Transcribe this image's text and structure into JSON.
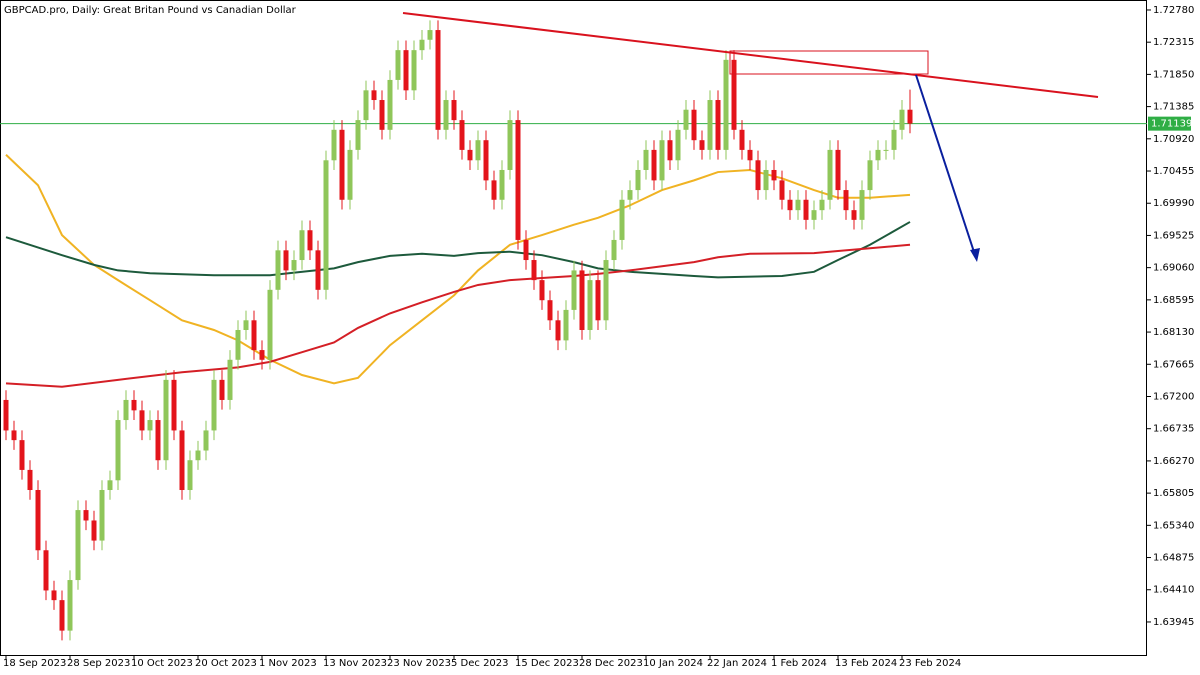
{
  "chart_data": {
    "type": "candlestick",
    "title": "GBPCAD.pro, Daily:  Great Britan Pound vs Canadian Dollar",
    "categories": [
      "18 Sep 2023",
      null,
      null,
      null,
      null,
      null,
      null,
      null,
      "28 Sep 2023",
      null,
      null,
      null,
      null,
      null,
      null,
      null,
      "10 Oct 2023",
      null,
      null,
      null,
      null,
      null,
      null,
      null,
      "20 Oct 2023",
      null,
      null,
      null,
      null,
      null,
      null,
      null,
      "1 Nov 2023",
      null,
      null,
      null,
      null,
      null,
      null,
      null,
      "13 Nov 2023",
      null,
      null,
      null,
      null,
      null,
      null,
      null,
      "23 Nov 2023",
      null,
      null,
      null,
      null,
      null,
      null,
      null,
      "5 Dec 2023",
      null,
      null,
      null,
      null,
      null,
      null,
      null,
      "15 Dec 2023",
      null,
      null,
      null,
      null,
      null,
      null,
      null,
      "28 Dec 2023",
      null,
      null,
      null,
      null,
      null,
      null,
      null,
      "10 Jan 2024",
      null,
      null,
      null,
      null,
      null,
      null,
      null,
      "22 Jan 2024",
      null,
      null,
      null,
      null,
      null,
      null,
      null,
      "1 Feb 2024",
      null,
      null,
      null,
      null,
      null,
      null,
      null,
      "13 Feb 2024",
      null,
      null,
      null,
      null,
      null,
      null,
      null,
      "23 Feb 2024",
      null
    ],
    "open": [
      1.6715,
      1.6671,
      1.6657,
      1.6614,
      1.6585,
      1.6498,
      1.644,
      1.6426,
      1.6382,
      1.6455,
      1.6556,
      1.6541,
      1.6512,
      1.6585,
      1.6599,
      1.6686,
      1.6715,
      1.67,
      1.6671,
      1.6686,
      1.6628,
      1.6744,
      1.6671,
      1.6585,
      1.6628,
      1.6642,
      1.6671,
      1.6744,
      1.6715,
      1.6773,
      1.6816,
      1.683,
      1.6787,
      1.6773,
      1.6874,
      1.6931,
      1.6902,
      1.6917,
      1.696,
      1.6931,
      1.6874,
      1.7061,
      1.7105,
      1.7004,
      1.7076,
      1.7119,
      1.7162,
      1.7148,
      1.7105,
      1.7177,
      1.722,
      1.7162,
      1.722,
      1.7235,
      1.7249,
      1.7105,
      1.7148,
      1.7119,
      1.7076,
      1.7061,
      1.709,
      1.7032,
      1.7004,
      1.7047,
      1.7119,
      1.6946,
      1.6917,
      1.6888,
      1.6859,
      1.683,
      1.6801,
      1.6845,
      1.6902,
      1.6816,
      1.6888,
      1.683,
      1.6917,
      1.6946,
      1.7004,
      1.7018,
      1.7047,
      1.7076,
      1.7032,
      1.709,
      1.7061,
      1.7105,
      1.7134,
      1.709,
      1.7076,
      1.7148,
      1.7076,
      1.7206,
      1.7105,
      1.7076,
      1.7061,
      1.7018,
      1.7047,
      1.7032,
      1.7004,
      1.6989,
      1.7004,
      1.6975,
      1.6989,
      1.7004,
      1.7076,
      1.7018,
      1.6989,
      1.6975,
      1.7018,
      1.7061,
      1.7076,
      1.7076,
      1.7105,
      1.7134
    ],
    "high": [
      1.6729,
      1.6685,
      1.6671,
      1.6628,
      1.6599,
      1.6512,
      1.6454,
      1.644,
      1.6469,
      1.657,
      1.657,
      1.6555,
      1.6599,
      1.6613,
      1.67,
      1.6729,
      1.6729,
      1.6714,
      1.67,
      1.67,
      1.6758,
      1.6758,
      1.6685,
      1.6642,
      1.6656,
      1.6685,
      1.6758,
      1.6758,
      1.6787,
      1.683,
      1.6844,
      1.6844,
      1.6801,
      1.6888,
      1.6945,
      1.6945,
      1.6931,
      1.6974,
      1.6974,
      1.6945,
      1.7075,
      1.7119,
      1.7119,
      1.709,
      1.7133,
      1.7176,
      1.7176,
      1.7162,
      1.7191,
      1.7234,
      1.7234,
      1.7234,
      1.7249,
      1.7263,
      1.7263,
      1.7162,
      1.7162,
      1.7133,
      1.709,
      1.7104,
      1.7104,
      1.7046,
      1.7061,
      1.7133,
      1.7133,
      1.696,
      1.6931,
      1.6902,
      1.6873,
      1.6844,
      1.6859,
      1.6916,
      1.6916,
      1.6902,
      1.6902,
      1.6931,
      1.696,
      1.7018,
      1.7032,
      1.7061,
      1.709,
      1.709,
      1.7104,
      1.7104,
      1.7119,
      1.7148,
      1.7148,
      1.7104,
      1.7162,
      1.7162,
      1.722,
      1.722,
      1.7119,
      1.709,
      1.7075,
      1.7061,
      1.7061,
      1.7046,
      1.7018,
      1.7018,
      1.7018,
      1.7003,
      1.7018,
      1.709,
      1.709,
      1.7032,
      1.7003,
      1.7032,
      1.7075,
      1.709,
      1.709,
      1.7119,
      1.7148,
      1.7163
    ],
    "low": [
      1.6657,
      1.6643,
      1.66,
      1.6571,
      1.6484,
      1.6426,
      1.6412,
      1.6368,
      1.6368,
      1.6441,
      1.6527,
      1.6498,
      1.6498,
      1.6571,
      1.6585,
      1.6672,
      1.6686,
      1.6657,
      1.6657,
      1.6614,
      1.6614,
      1.6657,
      1.6571,
      1.6571,
      1.6614,
      1.6628,
      1.6657,
      1.6701,
      1.6701,
      1.6759,
      1.6802,
      1.6773,
      1.6759,
      1.6759,
      1.686,
      1.6888,
      1.6888,
      1.6903,
      1.6917,
      1.686,
      1.686,
      1.7047,
      1.699,
      1.699,
      1.7062,
      1.7105,
      1.7134,
      1.7091,
      1.7091,
      1.7163,
      1.7148,
      1.7148,
      1.7206,
      1.7221,
      1.7091,
      1.7091,
      1.7105,
      1.7062,
      1.7047,
      1.7047,
      1.7018,
      1.699,
      1.699,
      1.7033,
      1.6932,
      1.6903,
      1.6874,
      1.6845,
      1.6816,
      1.6787,
      1.6787,
      1.6831,
      1.6802,
      1.6802,
      1.6816,
      1.6816,
      1.6903,
      1.6932,
      1.699,
      1.7004,
      1.7033,
      1.7018,
      1.7018,
      1.7047,
      1.7047,
      1.7091,
      1.7076,
      1.7062,
      1.7062,
      1.7062,
      1.7062,
      1.7091,
      1.7062,
      1.7047,
      1.7004,
      1.7004,
      1.7018,
      1.699,
      1.6975,
      1.6975,
      1.6961,
      1.6961,
      1.6975,
      1.699,
      1.7004,
      1.6975,
      1.6961,
      1.6961,
      1.7004,
      1.7047,
      1.7062,
      1.7062,
      1.7091,
      1.71
    ],
    "close": [
      1.6671,
      1.6657,
      1.6614,
      1.6585,
      1.6498,
      1.644,
      1.6426,
      1.6382,
      1.6455,
      1.6556,
      1.6541,
      1.6512,
      1.6585,
      1.6599,
      1.6686,
      1.6715,
      1.67,
      1.6671,
      1.6686,
      1.6628,
      1.6744,
      1.6671,
      1.6585,
      1.6628,
      1.6642,
      1.6671,
      1.6744,
      1.6715,
      1.6773,
      1.6816,
      1.683,
      1.6787,
      1.6773,
      1.6874,
      1.6931,
      1.6902,
      1.6917,
      1.696,
      1.6931,
      1.6874,
      1.7061,
      1.7105,
      1.7004,
      1.7076,
      1.7119,
      1.7162,
      1.7148,
      1.7105,
      1.7177,
      1.722,
      1.7162,
      1.722,
      1.7235,
      1.7249,
      1.7105,
      1.7148,
      1.7119,
      1.7076,
      1.7061,
      1.709,
      1.7032,
      1.7004,
      1.7047,
      1.7119,
      1.6946,
      1.6917,
      1.6888,
      1.6859,
      1.683,
      1.6801,
      1.6845,
      1.6902,
      1.6816,
      1.6888,
      1.683,
      1.6917,
      1.6946,
      1.7004,
      1.7018,
      1.7047,
      1.7076,
      1.7032,
      1.709,
      1.7061,
      1.7105,
      1.7134,
      1.709,
      1.7076,
      1.7148,
      1.7076,
      1.7206,
      1.7105,
      1.7076,
      1.7061,
      1.7018,
      1.7047,
      1.7032,
      1.7004,
      1.6989,
      1.7004,
      1.6975,
      1.6989,
      1.7004,
      1.7076,
      1.7018,
      1.6989,
      1.6975,
      1.7018,
      1.7061,
      1.7076,
      1.7076,
      1.7105,
      1.7134,
      1.7114
    ],
    "up_color": "#8fc65a",
    "down_color": "#e3141b",
    "overlays": [
      {
        "color": "#f0b323",
        "x": [
          0,
          4,
          7,
          11,
          14,
          18,
          22,
          26,
          29,
          33,
          37,
          41,
          44,
          48,
          52,
          56,
          59,
          63,
          67,
          71,
          74,
          78,
          82,
          86,
          89,
          93,
          97,
          101,
          104,
          108,
          113
        ],
        "values": [
          1.7069,
          1.7025,
          1.6953,
          1.691,
          1.6888,
          1.6859,
          1.683,
          1.6816,
          1.6801,
          1.6773,
          1.6751,
          1.6739,
          1.6747,
          1.6794,
          1.683,
          1.6866,
          1.6902,
          1.6939,
          1.6953,
          1.6968,
          1.6978,
          1.6996,
          1.7018,
          1.7032,
          1.7044,
          1.7047,
          1.7035,
          1.7018,
          1.7007,
          1.7007,
          1.7011
        ]
      },
      {
        "color": "#1d5a3c",
        "x": [
          0,
          7,
          11,
          14,
          18,
          26,
          33,
          41,
          44,
          48,
          52,
          56,
          59,
          63,
          67,
          71,
          74,
          78,
          82,
          86,
          89,
          97,
          101,
          104,
          108,
          113
        ],
        "values": [
          1.695,
          1.6924,
          1.691,
          1.6902,
          1.6898,
          1.6895,
          1.6895,
          1.6905,
          1.6914,
          1.6923,
          1.6926,
          1.6923,
          1.6927,
          1.6929,
          1.6924,
          1.6914,
          1.6905,
          1.69,
          1.6897,
          1.6894,
          1.6892,
          1.6894,
          1.69,
          1.6917,
          1.6939,
          1.6972
        ]
      },
      {
        "color": "#d41f26",
        "x": [
          0,
          7,
          14,
          22,
          29,
          33,
          37,
          41,
          44,
          48,
          52,
          56,
          59,
          63,
          67,
          71,
          74,
          78,
          82,
          86,
          89,
          93,
          101,
          104,
          108,
          113
        ],
        "values": [
          1.6739,
          1.6734,
          1.6744,
          1.6755,
          1.6762,
          1.677,
          1.6784,
          1.6798,
          1.6819,
          1.684,
          1.6856,
          1.6871,
          1.6881,
          1.6888,
          1.6891,
          1.6894,
          1.6897,
          1.6902,
          1.6908,
          1.6914,
          1.6921,
          1.6926,
          1.6927,
          1.693,
          1.6934,
          1.6939
        ]
      }
    ],
    "last_price": 1.71139,
    "last_price_color": "#2fae45",
    "ylim": [
      1.63468,
      1.72924
    ],
    "yticks": [
      {
        "value": 1.7278,
        "label": "1.72780"
      },
      1.72315,
      {
        "value": 1.7185,
        "label": "1.71850"
      },
      1.71385,
      {
        "value": 1.7092,
        "label": "1.70920"
      },
      1.70455,
      {
        "value": 1.6999,
        "label": "1.69990"
      },
      1.69525,
      {
        "value": 1.6906,
        "label": "1.69060"
      },
      1.68595,
      {
        "value": 1.6813,
        "label": "1.68130"
      },
      1.67665,
      {
        "value": 1.672,
        "label": "1.67200"
      },
      1.66735,
      {
        "value": 1.6627,
        "label": "1.66270"
      },
      1.65805,
      {
        "value": 1.6534,
        "label": "1.65340"
      },
      1.64875,
      {
        "value": 1.6441,
        "label": "1.64410"
      },
      1.63945
    ]
  }
}
